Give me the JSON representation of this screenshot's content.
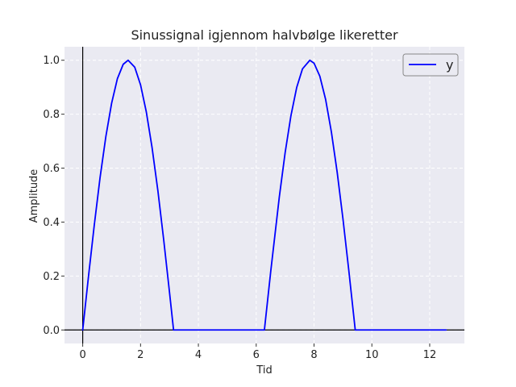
{
  "chart_data": {
    "type": "line",
    "title": "Sinussignal igjennom halvbølge likeretter",
    "xlabel": "Tid",
    "ylabel": "Amplitude",
    "xlim": [
      -0.63,
      13.2
    ],
    "ylim": [
      -0.05,
      1.05
    ],
    "xticks": [
      0,
      2,
      4,
      6,
      8,
      10,
      12
    ],
    "yticks": [
      0.0,
      0.2,
      0.4,
      0.6,
      0.8,
      1.0
    ],
    "xtick_labels": [
      "0",
      "2",
      "4",
      "6",
      "8",
      "10",
      "12"
    ],
    "ytick_labels": [
      "0.0",
      "0.2",
      "0.4",
      "0.6",
      "0.8",
      "1.0"
    ],
    "grid": true,
    "legend_position": "top-right",
    "background_color": "#eaeaf2",
    "grid_color": "#ffffff",
    "series": [
      {
        "name": "y",
        "color": "#0000ff",
        "x": [
          0,
          0.2,
          0.4,
          0.6,
          0.8,
          1.0,
          1.2,
          1.4,
          1.5708,
          1.8,
          2.0,
          2.2,
          2.4,
          2.6,
          2.8,
          3.0,
          3.1416,
          4.0,
          5.0,
          6.0,
          6.2832,
          6.5,
          6.8,
          7.0,
          7.2,
          7.4,
          7.6,
          7.854,
          8.0,
          8.2,
          8.4,
          8.6,
          8.8,
          9.0,
          9.2,
          9.4248,
          10.0,
          11.0,
          12.0,
          12.566
        ],
        "y": [
          0,
          0.199,
          0.389,
          0.565,
          0.717,
          0.841,
          0.932,
          0.985,
          1.0,
          0.974,
          0.909,
          0.808,
          0.675,
          0.516,
          0.335,
          0.141,
          0,
          0,
          0,
          0,
          0,
          0.215,
          0.494,
          0.657,
          0.794,
          0.899,
          0.968,
          1.0,
          0.989,
          0.941,
          0.855,
          0.734,
          0.585,
          0.412,
          0.223,
          0,
          0,
          0,
          0,
          0
        ]
      }
    ],
    "reference_lines": [
      {
        "orientation": "horizontal",
        "value": 0,
        "color": "#000000"
      },
      {
        "orientation": "vertical",
        "value": 0,
        "color": "#000000"
      }
    ]
  }
}
